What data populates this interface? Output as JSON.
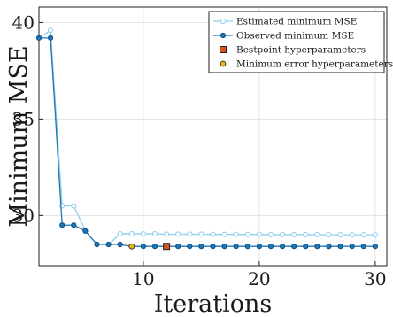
{
  "chart_data": {
    "type": "line",
    "title": "",
    "xlabel": "Iterations",
    "ylabel": "Minimum MSE",
    "xlim": [
      1,
      31
    ],
    "ylim": [
      27.4,
      40.8
    ],
    "xticks": [
      10,
      20,
      30
    ],
    "yticks": [
      30,
      35,
      40
    ],
    "grid": true,
    "legend_position": "top-right",
    "series": [
      {
        "name": "Estimated minimum MSE",
        "color": "#8ecfee",
        "marker": "circle-open",
        "x": [
          1,
          2,
          3,
          4,
          5,
          6,
          7,
          8,
          9,
          10,
          11,
          12,
          13,
          14,
          15,
          16,
          17,
          18,
          19,
          20,
          21,
          22,
          23,
          24,
          25,
          26,
          27,
          28,
          29,
          30
        ],
        "y": [
          39.2,
          39.6,
          30.5,
          30.5,
          29.2,
          28.5,
          28.5,
          29.05,
          29.05,
          29.05,
          29.05,
          29.03,
          29.03,
          29.03,
          29.03,
          29.02,
          29.02,
          29.02,
          29.02,
          29.02,
          29.01,
          29.01,
          29.01,
          29.01,
          29.01,
          29.0,
          29.0,
          29.0,
          29.0,
          29.0
        ]
      },
      {
        "name": "Observed minimum MSE",
        "color": "#1f77b4",
        "marker": "circle-filled",
        "x": [
          1,
          2,
          3,
          4,
          5,
          6,
          7,
          8,
          9,
          10,
          11,
          12,
          13,
          14,
          15,
          16,
          17,
          18,
          19,
          20,
          21,
          22,
          23,
          24,
          25,
          26,
          27,
          28,
          29,
          30
        ],
        "y": [
          39.2,
          39.2,
          29.5,
          29.5,
          29.2,
          28.5,
          28.5,
          28.5,
          28.4,
          28.4,
          28.4,
          28.4,
          28.4,
          28.4,
          28.4,
          28.4,
          28.4,
          28.4,
          28.4,
          28.4,
          28.4,
          28.4,
          28.4,
          28.4,
          28.4,
          28.4,
          28.4,
          28.4,
          28.4,
          28.4
        ]
      }
    ],
    "points": [
      {
        "name": "Bestpoint hyperparameters",
        "marker": "square",
        "color": "#d95319",
        "x": 12,
        "y": 28.4
      },
      {
        "name": "Minimum error hyperparameters",
        "marker": "circle",
        "color": "#edb120",
        "x": 9,
        "y": 28.4
      }
    ]
  }
}
